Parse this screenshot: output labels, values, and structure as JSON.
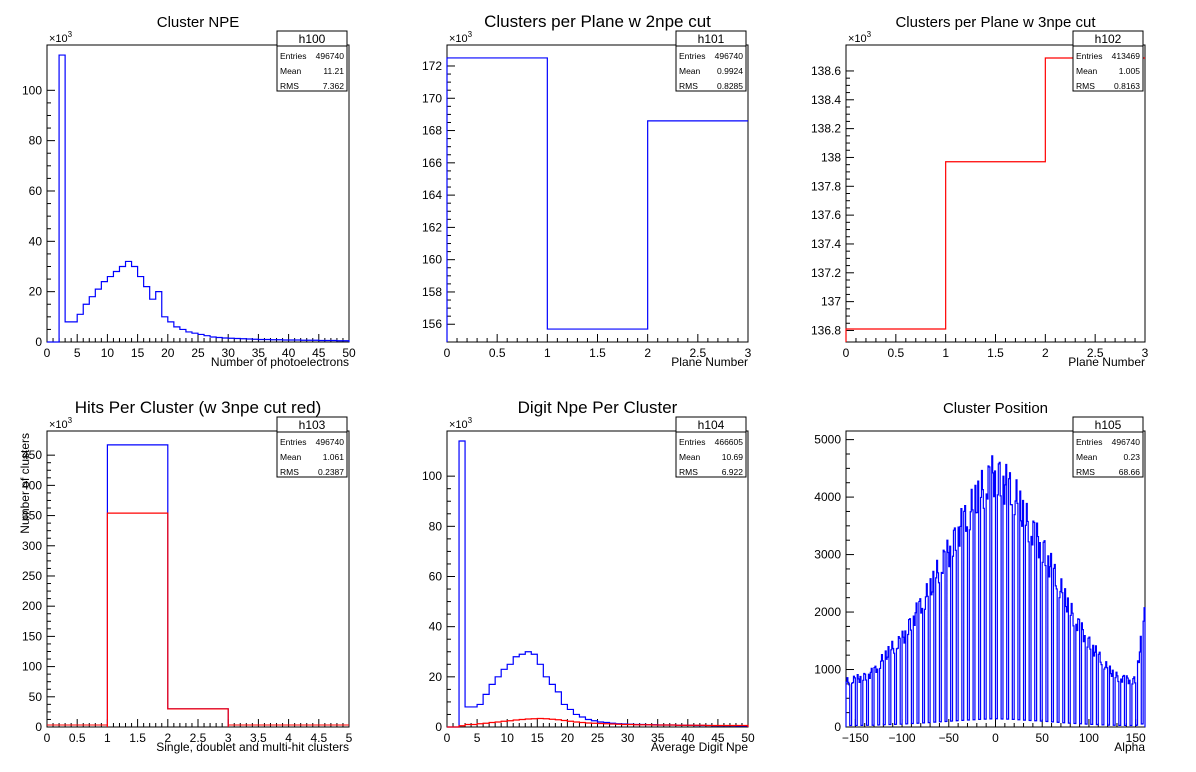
{
  "chart_data": [
    {
      "type": "histogram",
      "title": "Cluster NPE",
      "xlabel": "Number of photoelectrons",
      "ylabel": "",
      "y_multiplier_label": "×10^3",
      "xlim": [
        0,
        50
      ],
      "ylim": [
        0,
        118
      ],
      "x_ticks": [
        0,
        5,
        10,
        15,
        20,
        25,
        30,
        35,
        40,
        45,
        50
      ],
      "x_tick_labels": [
        "0",
        "5",
        "10",
        "15",
        "20",
        "25",
        "30",
        "35",
        "40",
        "45",
        "50"
      ],
      "y_ticks": [
        0,
        20,
        40,
        60,
        80,
        100
      ],
      "y_tick_labels": [
        "0",
        "20",
        "40",
        "60",
        "80",
        "100"
      ],
      "stats": {
        "name": "h100",
        "entries": "496740",
        "mean": "11.21",
        "rms": "7.362"
      },
      "series": [
        {
          "color": "#0000ff",
          "bin_edges": [
            0,
            1,
            2,
            3,
            4,
            5,
            6,
            7,
            8,
            9,
            10,
            11,
            12,
            13,
            14,
            15,
            16,
            17,
            18,
            19,
            20,
            21,
            22,
            23,
            24,
            25,
            26,
            27,
            28,
            29,
            30,
            31,
            32,
            33,
            34,
            35,
            36,
            37,
            38,
            39,
            40,
            41,
            42,
            43,
            44,
            45,
            46,
            47,
            48,
            49,
            50
          ],
          "values": [
            0,
            0,
            114,
            8,
            8,
            11,
            15,
            18,
            21,
            24,
            26,
            28,
            30,
            32,
            30,
            26,
            22,
            17,
            20,
            10,
            8,
            6,
            5,
            4,
            3.5,
            3,
            2.5,
            2,
            1.8,
            1.6,
            1.5,
            1.4,
            1.3,
            1.2,
            1.1,
            1,
            1,
            0.9,
            0.9,
            0.8,
            0.8,
            0.8,
            0.7,
            0.7,
            0.7,
            0.6,
            0.6,
            0.6,
            0.5,
            0.5
          ]
        }
      ]
    },
    {
      "type": "histogram",
      "title": "Clusters per Plane w 2npe cut",
      "xlabel": "Plane Number",
      "ylabel": "",
      "y_multiplier_label": "×10^3",
      "xlim": [
        0,
        3
      ],
      "ylim": [
        154.9,
        173.3
      ],
      "x_ticks": [
        0,
        0.5,
        1,
        1.5,
        2,
        2.5,
        3
      ],
      "x_tick_labels": [
        "0",
        "0.5",
        "1",
        "1.5",
        "2",
        "2.5",
        "3"
      ],
      "y_ticks": [
        156,
        158,
        160,
        162,
        164,
        166,
        168,
        170,
        172
      ],
      "y_tick_labels": [
        "156",
        "158",
        "160",
        "162",
        "164",
        "166",
        "168",
        "170",
        "172"
      ],
      "stats": {
        "name": "h101",
        "entries": "496740",
        "mean": "0.9924",
        "rms": "0.8285"
      },
      "series": [
        {
          "color": "#0000ff",
          "bin_edges": [
            0,
            1,
            2,
            3
          ],
          "values": [
            172.5,
            155.7,
            168.6
          ]
        }
      ]
    },
    {
      "type": "histogram",
      "title": "Clusters per Plane w 3npe cut",
      "xlabel": "Plane Number",
      "ylabel": "",
      "y_multiplier_label": "×10^3",
      "xlim": [
        0,
        3
      ],
      "ylim": [
        136.72,
        138.78
      ],
      "x_ticks": [
        0,
        0.5,
        1,
        1.5,
        2,
        2.5,
        3
      ],
      "x_tick_labels": [
        "0",
        "0.5",
        "1",
        "1.5",
        "2",
        "2.5",
        "3"
      ],
      "y_ticks": [
        136.8,
        137,
        137.2,
        137.4,
        137.6,
        137.8,
        138,
        138.2,
        138.4,
        138.6
      ],
      "y_tick_labels": [
        "136.8",
        "137",
        "137.2",
        "137.4",
        "137.6",
        "137.8",
        "138",
        "138.2",
        "138.4",
        "138.6"
      ],
      "stats": {
        "name": "h102",
        "entries": "413469",
        "mean": "1.005",
        "rms": "0.8163"
      },
      "series": [
        {
          "color": "#ff0000",
          "bin_edges": [
            0,
            1,
            2,
            3
          ],
          "values": [
            136.81,
            137.97,
            138.69
          ]
        }
      ]
    },
    {
      "type": "histogram",
      "title": "Hits Per Cluster (w 3npe cut red)",
      "xlabel": "Single, doublet and multi-hit clusters",
      "ylabel": "Number of clusters",
      "y_multiplier_label": "×10^3",
      "xlim": [
        0,
        5
      ],
      "ylim": [
        0,
        490
      ],
      "x_ticks": [
        0,
        0.5,
        1,
        1.5,
        2,
        2.5,
        3,
        3.5,
        4,
        4.5,
        5
      ],
      "x_tick_labels": [
        "0",
        "0.5",
        "1",
        "1.5",
        "2",
        "2.5",
        "3",
        "3.5",
        "4",
        "4.5",
        "5"
      ],
      "y_ticks": [
        0,
        50,
        100,
        150,
        200,
        250,
        300,
        350,
        400,
        450
      ],
      "y_tick_labels": [
        "0",
        "50",
        "100",
        "150",
        "200",
        "250",
        "300",
        "350",
        "400",
        "450"
      ],
      "stats": {
        "name": "h103",
        "entries": "496740",
        "mean": "1.061",
        "rms": "0.2387"
      },
      "series": [
        {
          "color": "#0000ff",
          "bin_edges": [
            1,
            2,
            3
          ],
          "values": [
            467,
            30
          ]
        },
        {
          "color": "#ff0000",
          "bin_edges": [
            1,
            2,
            3
          ],
          "values": [
            354,
            30
          ]
        }
      ]
    },
    {
      "type": "histogram",
      "title": "Digit Npe Per Cluster",
      "xlabel": "Average Digit Npe",
      "ylabel": "",
      "y_multiplier_label": "×10^3",
      "xlim": [
        0,
        50
      ],
      "ylim": [
        0,
        118
      ],
      "x_ticks": [
        0,
        5,
        10,
        15,
        20,
        25,
        30,
        35,
        40,
        45,
        50
      ],
      "x_tick_labels": [
        "0",
        "5",
        "10",
        "15",
        "20",
        "25",
        "30",
        "35",
        "40",
        "45",
        "50"
      ],
      "y_ticks": [
        0,
        20,
        40,
        60,
        80,
        100
      ],
      "y_tick_labels": [
        "0",
        "20",
        "40",
        "60",
        "80",
        "100"
      ],
      "stats": {
        "name": "h104",
        "entries": "466605",
        "mean": "10.69",
        "rms": "6.922"
      },
      "series": [
        {
          "color": "#0000ff",
          "bin_edges": [
            0,
            1,
            2,
            3,
            4,
            5,
            6,
            7,
            8,
            9,
            10,
            11,
            12,
            13,
            14,
            15,
            16,
            17,
            18,
            19,
            20,
            21,
            22,
            23,
            24,
            25,
            26,
            27,
            28,
            29,
            30,
            31,
            32,
            33,
            34,
            35,
            36,
            37,
            38,
            39,
            40,
            41,
            42,
            43,
            44,
            45,
            46,
            47,
            48,
            49,
            50
          ],
          "values": [
            0,
            0,
            114,
            8,
            8,
            9,
            13,
            17,
            20,
            23,
            25,
            28,
            29,
            30,
            29,
            25,
            20,
            17,
            14,
            9,
            7,
            5,
            4,
            3,
            2.5,
            2,
            1.8,
            1.5,
            1.3,
            1.2,
            1.1,
            1,
            1,
            0.9,
            0.9,
            0.8,
            0.8,
            0.8,
            0.7,
            0.7,
            0.7,
            0.6,
            0.6,
            0.6,
            0.5,
            0.5,
            0.5,
            0.5,
            0.4,
            0.4
          ]
        },
        {
          "color": "#ff0000",
          "bin_edges": [
            0,
            1,
            2,
            3,
            4,
            5,
            6,
            7,
            8,
            9,
            10,
            11,
            12,
            13,
            14,
            15,
            16,
            17,
            18,
            19,
            20,
            21,
            22,
            23,
            24,
            25,
            26,
            27,
            28,
            29,
            30,
            31,
            32,
            33,
            34,
            35,
            36,
            37,
            38,
            39,
            40,
            41,
            42,
            43,
            44,
            45,
            46,
            47,
            48,
            49,
            50
          ],
          "values": [
            0,
            0,
            0.5,
            1,
            1,
            1.3,
            1.5,
            1.8,
            2,
            2.3,
            2.5,
            2.8,
            3,
            3.2,
            3.3,
            3.4,
            3.3,
            3.1,
            2.9,
            2.6,
            2.3,
            2,
            1.8,
            1.6,
            1.5,
            1.4,
            1.3,
            1.2,
            1.1,
            1,
            1,
            0.9,
            0.9,
            0.9,
            0.8,
            0.8,
            0.8,
            0.8,
            0.7,
            0.7,
            0.7,
            0.7,
            0.7,
            0.6,
            0.6,
            0.6,
            0.6,
            0.6,
            0.6,
            0.6
          ]
        }
      ]
    },
    {
      "type": "histogram",
      "title": "Cluster Position",
      "xlabel": "Alpha",
      "ylabel": "",
      "y_multiplier_label": "",
      "xlim": [
        -160,
        160
      ],
      "ylim": [
        0,
        5150
      ],
      "x_ticks": [
        -150,
        -100,
        -50,
        0,
        50,
        100,
        150
      ],
      "x_tick_labels": [
        "−150",
        "−100",
        "−50",
        "0",
        "50",
        "100",
        "150"
      ],
      "y_ticks": [
        0,
        1000,
        2000,
        3000,
        4000,
        5000
      ],
      "y_tick_labels": [
        "0",
        "1000",
        "2000",
        "3000",
        "4000",
        "5000"
      ],
      "stats": {
        "name": "h105",
        "entries": "496740",
        "mean": "0.23",
        "rms": "68.66"
      },
      "series": [
        {
          "color": "#0000ff",
          "profile": "comb",
          "envelope_x": [
            -160,
            -150,
            -140,
            -130,
            -120,
            -110,
            -100,
            -90,
            -80,
            -70,
            -60,
            -50,
            -40,
            -30,
            -20,
            -10,
            0,
            10,
            20,
            30,
            40,
            50,
            60,
            70,
            80,
            90,
            100,
            110,
            120,
            130,
            140,
            150,
            160
          ],
          "envelope_y": [
            850,
            900,
            950,
            1050,
            1300,
            1500,
            1650,
            2000,
            2300,
            2600,
            3000,
            3300,
            3700,
            4000,
            4300,
            4600,
            4800,
            4600,
            4400,
            4000,
            3700,
            3400,
            3000,
            2600,
            2200,
            1900,
            1600,
            1350,
            1100,
            950,
            900,
            880,
            2150
          ]
        }
      ]
    }
  ]
}
